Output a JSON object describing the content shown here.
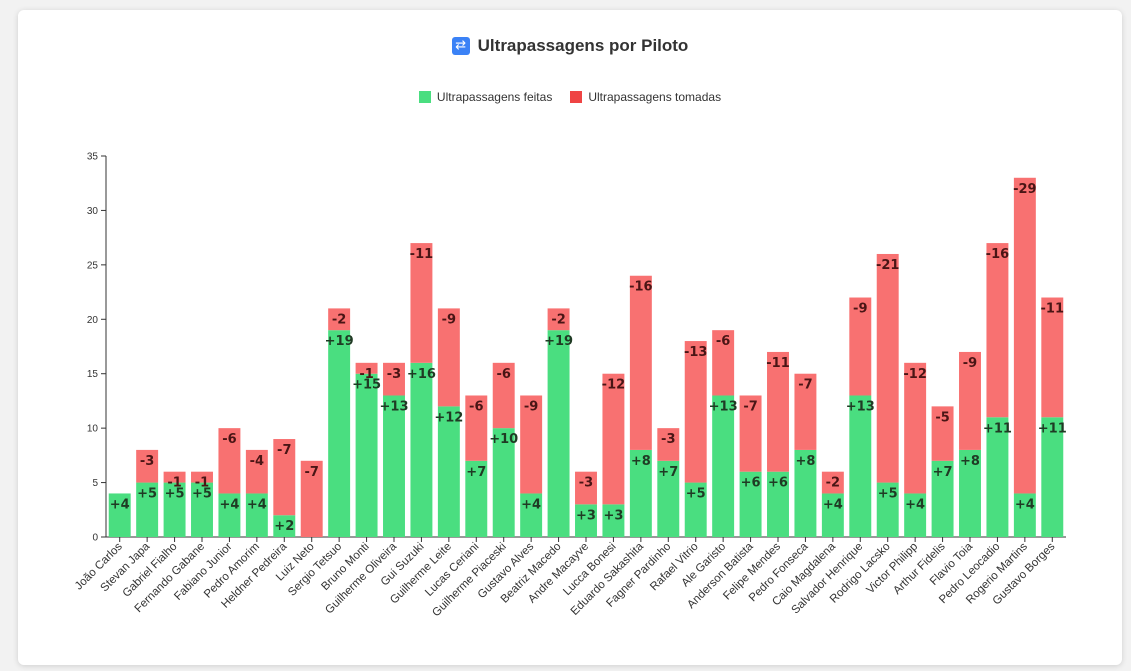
{
  "title": {
    "icon_name": "overtake-icon",
    "icon_glyph": "⇄",
    "text": "Ultrapassagens por Piloto"
  },
  "legend": {
    "made": {
      "label": "Ultrapassagens feitas",
      "color": "#4ade80"
    },
    "taken": {
      "label": "Ultrapassagens tomadas",
      "color": "#f87171"
    }
  },
  "chart_data": {
    "type": "bar",
    "stacked": true,
    "ylim": [
      0,
      35
    ],
    "yticks": [
      0,
      5,
      10,
      15,
      20,
      25,
      30,
      35
    ],
    "categories": [
      "João Carlos",
      "Stevan Japa",
      "Gabriel Fialho",
      "Fernando Gabane",
      "Fabiano Junior",
      "Pedro Amorim",
      "Heldner Pedreira",
      "Luiz Neto",
      "Sergio Tetsuo",
      "Bruno Monti",
      "Guilherme Oliveira",
      "Gui Suzuki",
      "Guilherme Leite",
      "Lucas Ceriani",
      "Guilherme Piaceski",
      "Gustavo Alves",
      "Beatriz Macedo",
      "Andre Macayve",
      "Lucca Bonesi",
      "Eduardo Sakashita",
      "Fagner Pardinho",
      "Rafael Vitrio",
      "Ale Garisto",
      "Anderson Batista",
      "Felipe Mendes",
      "Pedro Fonseca",
      "Caio Magdalena",
      "Salvador Henrique",
      "Rodrigo Lacsko",
      "Victor Philipp",
      "Arthur Fidelis",
      "Flavio Toia",
      "Pedro Leocadio",
      "Rogerio Martins",
      "Gustavo Borges"
    ],
    "series": [
      {
        "name": "Ultrapassagens feitas",
        "color": "#4ade80",
        "values": [
          4,
          5,
          5,
          5,
          4,
          4,
          2,
          0,
          19,
          15,
          13,
          16,
          12,
          7,
          10,
          4,
          19,
          3,
          3,
          8,
          7,
          5,
          13,
          6,
          6,
          8,
          4,
          13,
          5,
          4,
          7,
          8,
          11,
          4,
          11
        ],
        "labels": [
          "+4",
          "+5",
          "+5",
          "+5",
          "+4",
          "+4",
          "+2",
          "",
          "+19",
          "+15",
          "+13",
          "+16",
          "+12",
          "+7",
          "+10",
          "+4",
          "+19",
          "+3",
          "+3",
          "+8",
          "+7",
          "+5",
          "+13",
          "+6",
          "+6",
          "+8",
          "+4",
          "+13",
          "+5",
          "+4",
          "+7",
          "+8",
          "+11",
          "+4",
          "+11"
        ]
      },
      {
        "name": "Ultrapassagens tomadas",
        "color": "#f87171",
        "values": [
          0,
          3,
          1,
          1,
          6,
          4,
          7,
          7,
          2,
          1,
          3,
          11,
          9,
          6,
          6,
          9,
          2,
          3,
          12,
          16,
          3,
          13,
          6,
          7,
          11,
          7,
          2,
          9,
          21,
          12,
          5,
          9,
          16,
          29,
          11
        ],
        "labels": [
          "",
          "-3",
          "-1",
          "-1",
          "-6",
          "-4",
          "-7",
          "-7",
          "-2",
          "-1",
          "-3",
          "-11",
          "-9",
          "-6",
          "-6",
          "-9",
          "-2",
          "-3",
          "-12",
          "-16",
          "-3",
          "-13",
          "-6",
          "-7",
          "-11",
          "-7",
          "-2",
          "-9",
          "-21",
          "-12",
          "-5",
          "-9",
          "-16",
          "-29",
          "-11"
        ]
      }
    ]
  }
}
